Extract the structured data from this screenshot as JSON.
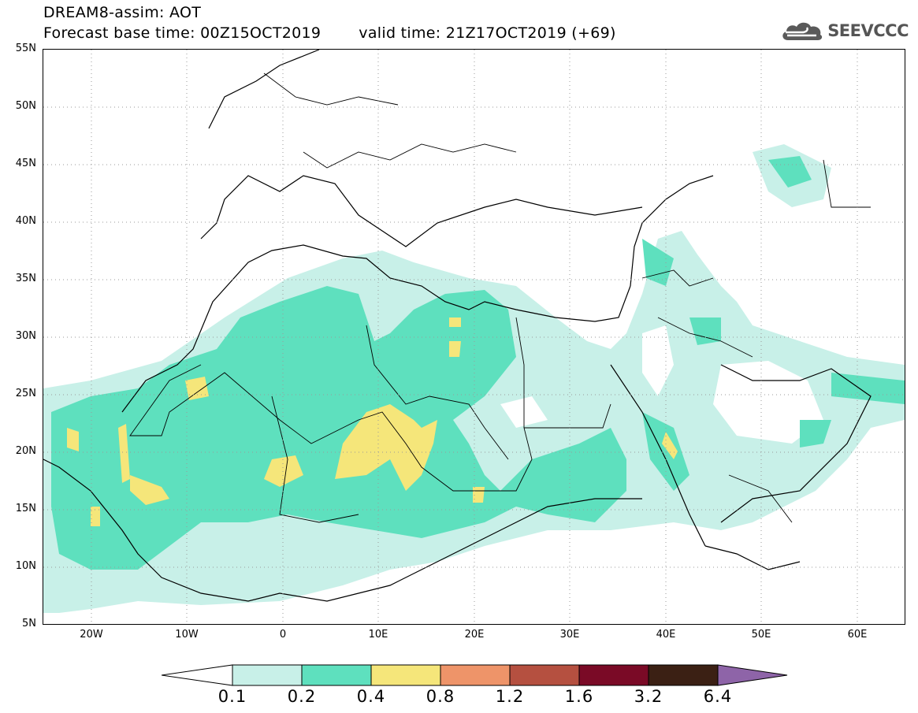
{
  "title": {
    "line1": "DREAM8-assim: AOT",
    "base_time": "Forecast base time: 00Z15OCT2019",
    "valid_time": "valid time: 21Z17OCT2019 (+69)"
  },
  "logo": {
    "icon": "cloud-icon",
    "text": "SEEVCCC"
  },
  "map": {
    "lon_range": [
      -25,
      65
    ],
    "lat_range": [
      5,
      55
    ],
    "lat_labels": [
      "55N",
      "50N",
      "45N",
      "40N",
      "35N",
      "30N",
      "25N",
      "20N",
      "15N",
      "10N",
      "5N"
    ],
    "lon_labels": [
      "20W",
      "10W",
      "0",
      "10E",
      "20E",
      "30E",
      "40E",
      "50E",
      "60E"
    ]
  },
  "colorbar": {
    "labels": [
      "0.1",
      "0.2",
      "0.4",
      "0.8",
      "1.2",
      "1.6",
      "3.2",
      "6.4"
    ],
    "colors": [
      "#ffffff",
      "#c8f0e8",
      "#5ee0be",
      "#f5e67a",
      "#ee9469",
      "#b55040",
      "#7a0a26",
      "#3b2014",
      "#8e64a8"
    ]
  }
}
